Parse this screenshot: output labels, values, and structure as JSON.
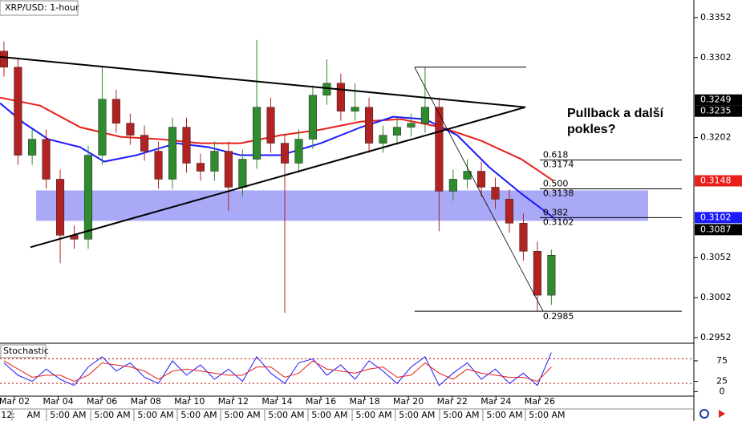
{
  "chart_data": [
    {
      "type": "candlestick",
      "title": "XRP/USD: 1-hour",
      "x": [
        0.52,
        1.16,
        1.81,
        2.45,
        3.09,
        3.73,
        4.37,
        5.01,
        5.65,
        6.29,
        6.94,
        7.58,
        8.22,
        8.86,
        9.5,
        10.14,
        10.78,
        11.42,
        12.07,
        12.71,
        13.35,
        13.99,
        14.63,
        15.27,
        15.91,
        16.56,
        17.2,
        17.84,
        18.48,
        19.12,
        19.76,
        20.4,
        21.04,
        21.69,
        22.33,
        22.97,
        23.61,
        24.25,
        24.89,
        25.53
      ],
      "open": [
        0.331,
        0.329,
        0.318,
        0.32,
        0.315,
        0.308,
        0.3075,
        0.318,
        0.325,
        0.322,
        0.3205,
        0.3185,
        0.315,
        0.3215,
        0.317,
        0.316,
        0.3185,
        0.314,
        0.3175,
        0.324,
        0.3195,
        0.317,
        0.32,
        0.3255,
        0.327,
        0.3235,
        0.324,
        0.3195,
        0.3205,
        0.3215,
        0.322,
        0.324,
        0.3135,
        0.315,
        0.316,
        0.314,
        0.3125,
        0.3095,
        0.306,
        0.3005
      ],
      "high": [
        0.3322,
        0.3302,
        0.3212,
        0.3212,
        0.3162,
        0.3092,
        0.3192,
        0.329,
        0.3262,
        0.3232,
        0.3217,
        0.3197,
        0.3227,
        0.3227,
        0.3182,
        0.3197,
        0.3197,
        0.3187,
        0.3324,
        0.3252,
        0.3207,
        0.3212,
        0.3267,
        0.33,
        0.3282,
        0.327,
        0.3252,
        0.3217,
        0.3227,
        0.3232,
        0.329,
        0.3252,
        0.3162,
        0.3175,
        0.3172,
        0.3152,
        0.3137,
        0.3107,
        0.3072,
        0.3062
      ],
      "low": [
        0.3278,
        0.3168,
        0.3168,
        0.3138,
        0.3045,
        0.3063,
        0.3063,
        0.3168,
        0.3208,
        0.3193,
        0.3173,
        0.3138,
        0.3138,
        0.3158,
        0.3148,
        0.3148,
        0.311,
        0.3128,
        0.3163,
        0.3183,
        0.2983,
        0.3158,
        0.3188,
        0.3243,
        0.3223,
        0.3223,
        0.3183,
        0.3183,
        0.3193,
        0.3203,
        0.3208,
        0.3085,
        0.3123,
        0.3138,
        0.3128,
        0.3113,
        0.3083,
        0.3048,
        0.2985,
        0.2993
      ],
      "close": [
        0.329,
        0.318,
        0.32,
        0.315,
        0.308,
        0.3075,
        0.318,
        0.325,
        0.322,
        0.3205,
        0.3185,
        0.315,
        0.3215,
        0.317,
        0.316,
        0.3185,
        0.314,
        0.3175,
        0.324,
        0.3195,
        0.317,
        0.32,
        0.3255,
        0.327,
        0.3235,
        0.324,
        0.3195,
        0.3205,
        0.3215,
        0.322,
        0.324,
        0.3135,
        0.315,
        0.316,
        0.314,
        0.3125,
        0.3095,
        0.306,
        0.3005,
        0.3055
      ],
      "up_color": "#2e8b2e",
      "down_color": "#b22222",
      "series": [
        {
          "color": "#e8201a",
          "x": [
            0.34,
            2.17,
            4.0,
            5.84,
            7.67,
            9.5,
            11.33,
            13.17,
            15.0,
            16.83,
            18.66,
            20.49,
            22.33,
            24.16,
            25.62
          ],
          "values": [
            0.3252,
            0.3242,
            0.3215,
            0.3203,
            0.32,
            0.3195,
            0.3195,
            0.3205,
            0.3212,
            0.3222,
            0.3225,
            0.3215,
            0.3198,
            0.3175,
            0.3148
          ]
        },
        {
          "color": "#1a1aff",
          "x": [
            0.34,
            1.44,
            2.54,
            4.0,
            5.1,
            6.57,
            8.4,
            9.87,
            11.33,
            13.17,
            15.0,
            16.83,
            18.3,
            19.76,
            21.23,
            22.69,
            24.16,
            25.62
          ],
          "values": [
            0.3245,
            0.322,
            0.32,
            0.319,
            0.3172,
            0.318,
            0.3195,
            0.319,
            0.318,
            0.318,
            0.3195,
            0.3215,
            0.3228,
            0.3225,
            0.3205,
            0.3165,
            0.3132,
            0.3102
          ]
        }
      ],
      "trendlines": [
        {
          "x": [
            0.34,
            24.34
          ],
          "y": [
            0.3303,
            0.324
          ]
        },
        {
          "x": [
            1.73,
            24.34
          ],
          "y": [
            0.3065,
            0.324
          ]
        }
      ],
      "zone": {
        "x": [
          1.99,
          29.95
        ],
        "y": [
          0.3098,
          0.3136
        ],
        "color": "#8c8cf5"
      },
      "fib": {
        "x": [
          19.28,
          25.15
        ],
        "y": [
          0.329,
          0.2985
        ],
        "top_x": [
          19.28,
          24.38
        ],
        "levels_x": [
          25.0,
          31.49
        ],
        "levels": [
          {
            "ratio": "0.618",
            "value": 0.3174
          },
          {
            "ratio": "0.500",
            "value": 0.3138
          },
          {
            "ratio": "0.382",
            "value": 0.3102
          }
        ],
        "low": 0.2985
      },
      "annotation": [
        "Pullback a další",
        "pokles?"
      ],
      "price_tags": [
        {
          "value": 0.3249,
          "color": "#000000"
        },
        {
          "value": 0.3235,
          "color": "#000000"
        },
        {
          "value": 0.3148,
          "color": "#e8201a"
        },
        {
          "value": 0.3102,
          "color": "#1a1aff"
        },
        {
          "value": 0.3087,
          "color": "#000000"
        }
      ],
      "xlim": [
        0.34,
        32.04
      ],
      "ylim": [
        0.2945,
        0.3374
      ],
      "yticks": [
        0.3352,
        0.3302,
        0.3202,
        0.3052,
        0.3002,
        0.2952
      ],
      "xticks": [
        {
          "value": 1,
          "label": "Mar 02"
        },
        {
          "value": 3,
          "label": "Mar 04"
        },
        {
          "value": 5,
          "label": "Mar 06"
        },
        {
          "value": 7,
          "label": "Mar 08"
        },
        {
          "value": 9,
          "label": "Mar 10"
        },
        {
          "value": 11,
          "label": "Mar 12"
        },
        {
          "value": 13,
          "label": "Mar 14"
        },
        {
          "value": 15,
          "label": "Mar 16"
        },
        {
          "value": 17,
          "label": "Mar 18"
        },
        {
          "value": 19,
          "label": "Mar 20"
        },
        {
          "value": 21,
          "label": "Mar 22"
        },
        {
          "value": 23,
          "label": "Mar 24"
        },
        {
          "value": 25,
          "label": "Mar 26"
        }
      ],
      "time_ticks": [
        {
          "value": 0.71,
          "label": "12:"
        },
        {
          "value": 1.88,
          "label": "AM"
        },
        {
          "value": 3.45,
          "label": "5:00 AM"
        },
        {
          "value": 5.47,
          "label": "5:00 AM"
        },
        {
          "value": 7.45,
          "label": "5:00 AM"
        },
        {
          "value": 9.43,
          "label": "5:00 AM"
        },
        {
          "value": 11.41,
          "label": "5:00 AM"
        },
        {
          "value": 13.42,
          "label": "5:00 AM"
        },
        {
          "value": 15.4,
          "label": "5:00 AM"
        },
        {
          "value": 17.42,
          "label": "5:00 AM"
        },
        {
          "value": 19.39,
          "label": "5:00 AM"
        },
        {
          "value": 21.41,
          "label": "5:00 AM"
        },
        {
          "value": 23.39,
          "label": "5:00 AM"
        },
        {
          "value": 25.33,
          "label": "5:00 AM"
        }
      ]
    },
    {
      "type": "line",
      "title": "Stochastic",
      "x": [
        0.52,
        1.16,
        1.81,
        2.45,
        3.09,
        3.73,
        4.37,
        5.01,
        5.65,
        6.29,
        6.94,
        7.58,
        8.22,
        8.86,
        9.5,
        10.14,
        10.78,
        11.42,
        12.07,
        12.71,
        13.35,
        13.99,
        14.63,
        15.27,
        15.91,
        16.56,
        17.2,
        17.84,
        18.48,
        19.12,
        19.76,
        20.4,
        21.04,
        21.69,
        22.33,
        22.97,
        23.61,
        24.25,
        24.89,
        25.53
      ],
      "series": [
        {
          "color": "#1a1aff",
          "values": [
            70,
            40,
            25,
            55,
            30,
            15,
            60,
            85,
            50,
            70,
            35,
            20,
            75,
            40,
            65,
            30,
            55,
            25,
            85,
            45,
            20,
            70,
            80,
            40,
            65,
            30,
            75,
            50,
            20,
            60,
            85,
            15,
            45,
            70,
            30,
            55,
            20,
            45,
            15,
            95
          ]
        },
        {
          "color": "#e8201a",
          "values": [
            75,
            55,
            35,
            40,
            40,
            25,
            40,
            70,
            65,
            60,
            50,
            30,
            50,
            55,
            50,
            45,
            40,
            40,
            60,
            60,
            35,
            45,
            75,
            55,
            50,
            45,
            55,
            60,
            35,
            40,
            70,
            45,
            30,
            55,
            45,
            40,
            35,
            35,
            25,
            60
          ]
        }
      ],
      "levels": [
        80,
        20
      ],
      "xlim": [
        0.34,
        32.04
      ],
      "ylim": [
        -11,
        114
      ],
      "yticks": [
        75,
        25,
        0
      ]
    }
  ]
}
